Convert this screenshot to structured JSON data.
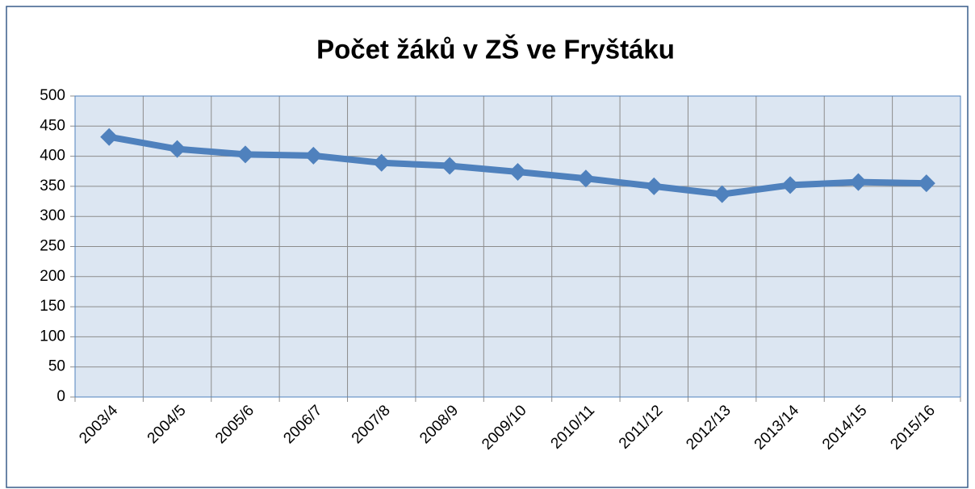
{
  "chart_data": {
    "type": "line",
    "title": "Počet žáků v ZŠ ve Fryštáku",
    "categories": [
      "2003/4",
      "2004/5",
      "2005/6",
      "2006/7",
      "2007/8",
      "2008/9",
      "2009/10",
      "2010/11",
      "2011/12",
      "2012/13",
      "2013/14",
      "2014/15",
      "2015/16"
    ],
    "series": [
      {
        "name": "Počet žáků",
        "color": "#4f81bd",
        "values": [
          432,
          412,
          403,
          401,
          389,
          384,
          374,
          363,
          350,
          337,
          352,
          357,
          355
        ]
      }
    ],
    "ylim": [
      0,
      500
    ],
    "yticks": [
      0,
      50,
      100,
      150,
      200,
      250,
      300,
      350,
      400,
      450,
      500
    ],
    "grid": true
  }
}
